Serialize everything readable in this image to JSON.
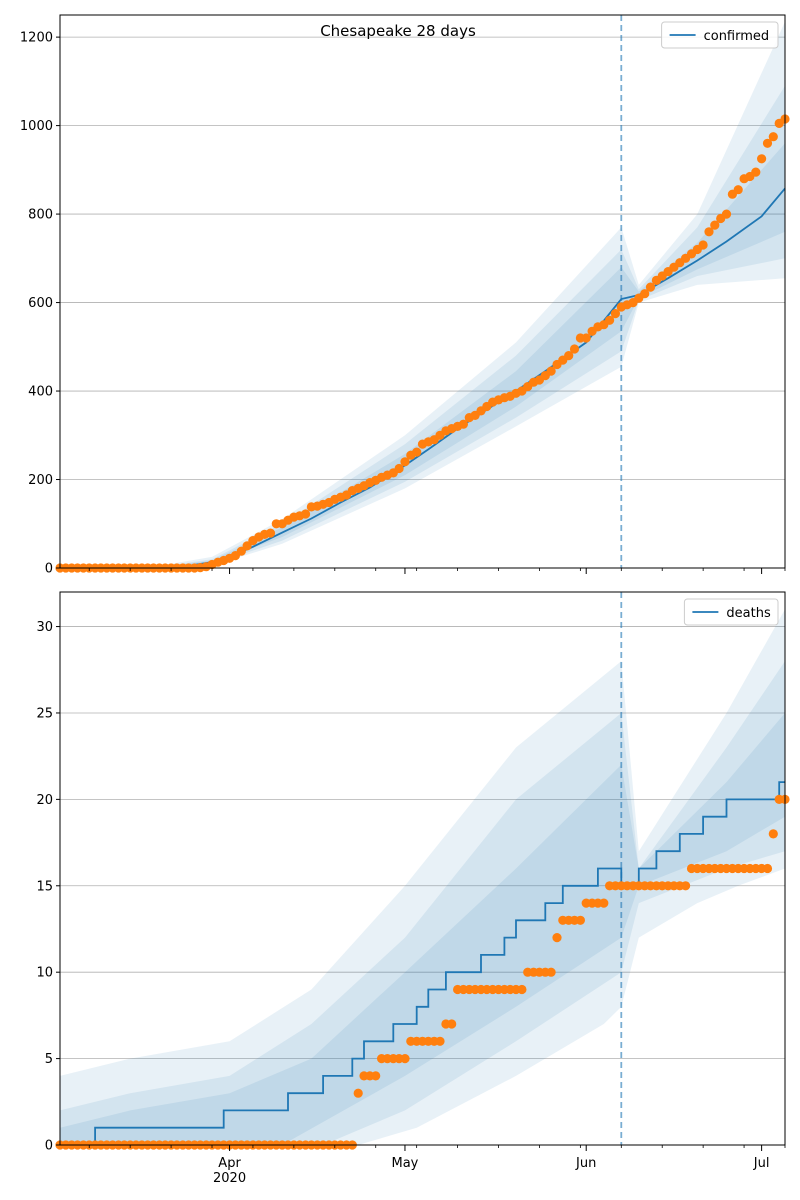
{
  "chart_data": [
    {
      "type": "line",
      "title": "Chesapeake 28 days",
      "legend": {
        "label": "confirmed",
        "placement": "top-right"
      },
      "x_range": [
        "2020-03-03",
        "2020-07-05"
      ],
      "x_ticks": [
        {
          "date": "2020-04-01",
          "label": "Apr",
          "sublabel": "2020"
        },
        {
          "date": "2020-05-01",
          "label": "May",
          "sublabel": ""
        },
        {
          "date": "2020-06-01",
          "label": "Jun",
          "sublabel": ""
        },
        {
          "date": "2020-07-01",
          "label": "Jul",
          "sublabel": ""
        }
      ],
      "show_x_tick_labels": false,
      "ylim": [
        0,
        1250
      ],
      "y_ticks": [
        0,
        200,
        400,
        600,
        800,
        1000,
        1200
      ],
      "grid": "horizontal",
      "forecast_start": "2020-06-07",
      "colors": {
        "model": "#1f77b4",
        "observed": "#ff7f0e"
      },
      "model_line": [
        [
          "2020-03-03",
          0
        ],
        [
          "2020-03-20",
          1
        ],
        [
          "2020-03-25",
          5
        ],
        [
          "2020-03-29",
          13
        ],
        [
          "2020-04-01",
          25
        ],
        [
          "2020-04-05",
          48
        ],
        [
          "2020-04-10",
          80
        ],
        [
          "2020-04-15",
          112
        ],
        [
          "2020-04-20",
          148
        ],
        [
          "2020-04-25",
          182
        ],
        [
          "2020-05-01",
          232
        ],
        [
          "2020-05-05",
          268
        ],
        [
          "2020-05-10",
          315
        ],
        [
          "2020-05-15",
          358
        ],
        [
          "2020-05-20",
          400
        ],
        [
          "2020-05-25",
          445
        ],
        [
          "2020-06-01",
          510
        ],
        [
          "2020-06-07",
          608
        ],
        [
          "2020-06-10",
          617
        ],
        [
          "2020-06-15",
          655
        ],
        [
          "2020-06-20",
          695
        ],
        [
          "2020-06-25",
          738
        ],
        [
          "2020-07-01",
          795
        ],
        [
          "2020-07-05",
          858
        ]
      ],
      "bands": [
        {
          "lower": [
            [
              "2020-03-03",
              0
            ],
            [
              "2020-03-29",
              5
            ],
            [
              "2020-04-10",
              55
            ],
            [
              "2020-05-01",
              180
            ],
            [
              "2020-05-20",
              320
            ],
            [
              "2020-06-07",
              455
            ],
            [
              "2020-06-10",
              600
            ],
            [
              "2020-06-20",
              640
            ],
            [
              "2020-07-05",
              655
            ]
          ],
          "upper": [
            [
              "2020-03-03",
              0
            ],
            [
              "2020-03-20",
              5
            ],
            [
              "2020-03-29",
              25
            ],
            [
              "2020-04-10",
              110
            ],
            [
              "2020-05-01",
              300
            ],
            [
              "2020-05-20",
              510
            ],
            [
              "2020-06-07",
              770
            ],
            [
              "2020-06-10",
              640
            ],
            [
              "2020-06-20",
              800
            ],
            [
              "2020-07-05",
              1235
            ]
          ]
        },
        {
          "lower": [
            [
              "2020-03-03",
              0
            ],
            [
              "2020-03-29",
              8
            ],
            [
              "2020-04-10",
              62
            ],
            [
              "2020-05-01",
              195
            ],
            [
              "2020-05-20",
              340
            ],
            [
              "2020-06-07",
              490
            ],
            [
              "2020-06-10",
              605
            ],
            [
              "2020-06-20",
              660
            ],
            [
              "2020-07-05",
              700
            ]
          ],
          "upper": [
            [
              "2020-03-03",
              0
            ],
            [
              "2020-03-20",
              3
            ],
            [
              "2020-03-29",
              20
            ],
            [
              "2020-04-10",
              100
            ],
            [
              "2020-05-01",
              280
            ],
            [
              "2020-05-20",
              480
            ],
            [
              "2020-06-07",
              720
            ],
            [
              "2020-06-10",
              630
            ],
            [
              "2020-06-20",
              770
            ],
            [
              "2020-07-05",
              1090
            ]
          ]
        },
        {
          "lower": [
            [
              "2020-03-03",
              0
            ],
            [
              "2020-03-29",
              10
            ],
            [
              "2020-04-10",
              70
            ],
            [
              "2020-05-01",
              210
            ],
            [
              "2020-05-20",
              365
            ],
            [
              "2020-06-07",
              535
            ],
            [
              "2020-06-10",
              610
            ],
            [
              "2020-06-20",
              675
            ],
            [
              "2020-07-05",
              760
            ]
          ],
          "upper": [
            [
              "2020-03-03",
              0
            ],
            [
              "2020-03-20",
              2
            ],
            [
              "2020-03-29",
              17
            ],
            [
              "2020-04-10",
              92
            ],
            [
              "2020-05-01",
              258
            ],
            [
              "2020-05-20",
              445
            ],
            [
              "2020-06-07",
              680
            ],
            [
              "2020-06-10",
              625
            ],
            [
              "2020-06-20",
              735
            ],
            [
              "2020-07-05",
              960
            ]
          ]
        }
      ],
      "observed": {
        "start": "2020-03-03",
        "values": [
          0,
          0,
          0,
          0,
          0,
          0,
          0,
          0,
          0,
          0,
          0,
          0,
          0,
          0,
          0,
          0,
          0,
          0,
          0,
          0,
          0,
          0,
          0,
          0,
          1,
          3,
          8,
          13,
          17,
          22,
          28,
          38,
          50,
          62,
          70,
          76,
          79,
          100,
          100,
          108,
          115,
          118,
          122,
          138,
          140,
          144,
          148,
          155,
          160,
          165,
          175,
          180,
          186,
          193,
          198,
          205,
          210,
          215,
          225,
          240,
          255,
          262,
          280,
          285,
          290,
          300,
          310,
          315,
          320,
          325,
          340,
          345,
          355,
          365,
          375,
          380,
          385,
          388,
          395,
          400,
          410,
          420,
          425,
          435,
          445,
          460,
          470,
          480,
          495,
          520,
          520,
          535,
          545,
          550,
          560,
          575,
          590,
          595,
          600,
          610,
          620,
          635,
          650,
          660,
          670,
          680,
          690,
          700,
          710,
          720,
          730,
          760,
          775,
          790,
          800,
          845,
          855,
          880,
          885,
          895,
          925,
          960,
          975,
          1005,
          1015
        ]
      }
    },
    {
      "type": "line",
      "title": "",
      "legend": {
        "label": "deaths",
        "placement": "top-right"
      },
      "x_range": [
        "2020-03-03",
        "2020-07-05"
      ],
      "x_ticks": [
        {
          "date": "2020-04-01",
          "label": "Apr",
          "sublabel": "2020"
        },
        {
          "date": "2020-05-01",
          "label": "May",
          "sublabel": ""
        },
        {
          "date": "2020-06-01",
          "label": "Jun",
          "sublabel": ""
        },
        {
          "date": "2020-07-01",
          "label": "Jul",
          "sublabel": ""
        }
      ],
      "show_x_tick_labels": true,
      "ylim": [
        0,
        32
      ],
      "y_ticks": [
        0,
        5,
        10,
        15,
        20,
        25,
        30
      ],
      "grid": "horizontal",
      "forecast_start": "2020-06-07",
      "colors": {
        "model": "#1f77b4",
        "observed": "#ff7f0e"
      },
      "model_steps": [
        [
          "2020-03-03",
          0
        ],
        [
          "2020-03-09",
          1
        ],
        [
          "2020-03-31",
          2
        ],
        [
          "2020-04-11",
          3
        ],
        [
          "2020-04-17",
          4
        ],
        [
          "2020-04-22",
          5
        ],
        [
          "2020-04-24",
          6
        ],
        [
          "2020-04-29",
          7
        ],
        [
          "2020-05-03",
          8
        ],
        [
          "2020-05-05",
          9
        ],
        [
          "2020-05-08",
          10
        ],
        [
          "2020-05-14",
          11
        ],
        [
          "2020-05-18",
          12
        ],
        [
          "2020-05-20",
          13
        ],
        [
          "2020-05-25",
          14
        ],
        [
          "2020-05-28",
          15
        ],
        [
          "2020-06-03",
          16
        ],
        [
          "2020-06-07",
          15
        ],
        [
          "2020-06-10",
          16
        ],
        [
          "2020-06-13",
          17
        ],
        [
          "2020-06-17",
          18
        ],
        [
          "2020-06-21",
          19
        ],
        [
          "2020-06-25",
          20
        ],
        [
          "2020-07-04",
          21
        ]
      ],
      "bands": [
        {
          "lower": [
            [
              "2020-03-03",
              0
            ],
            [
              "2020-04-23",
              0
            ],
            [
              "2020-05-03",
              1
            ],
            [
              "2020-05-20",
              4
            ],
            [
              "2020-06-04",
              7
            ],
            [
              "2020-06-07",
              8
            ],
            [
              "2020-06-10",
              12
            ],
            [
              "2020-06-20",
              14
            ],
            [
              "2020-06-27",
              15
            ],
            [
              "2020-07-05",
              16
            ]
          ],
          "upper": [
            [
              "2020-03-03",
              4
            ],
            [
              "2020-03-15",
              5
            ],
            [
              "2020-04-01",
              6
            ],
            [
              "2020-04-15",
              9
            ],
            [
              "2020-05-01",
              15
            ],
            [
              "2020-05-20",
              23
            ],
            [
              "2020-06-07",
              28
            ],
            [
              "2020-06-10",
              17
            ],
            [
              "2020-06-25",
              25
            ],
            [
              "2020-07-05",
              31
            ]
          ]
        },
        {
          "lower": [
            [
              "2020-03-03",
              0
            ],
            [
              "2020-04-17",
              0
            ],
            [
              "2020-05-01",
              2
            ],
            [
              "2020-05-20",
              6
            ],
            [
              "2020-06-07",
              10
            ],
            [
              "2020-06-10",
              14
            ],
            [
              "2020-06-25",
              16
            ],
            [
              "2020-07-05",
              17
            ]
          ],
          "upper": [
            [
              "2020-03-03",
              2
            ],
            [
              "2020-03-15",
              3
            ],
            [
              "2020-04-01",
              4
            ],
            [
              "2020-04-15",
              7
            ],
            [
              "2020-05-01",
              12
            ],
            [
              "2020-05-20",
              20
            ],
            [
              "2020-06-07",
              25
            ],
            [
              "2020-06-10",
              16
            ],
            [
              "2020-06-25",
              23
            ],
            [
              "2020-07-05",
              28
            ]
          ]
        },
        {
          "lower": [
            [
              "2020-03-03",
              0
            ],
            [
              "2020-04-10",
              0
            ],
            [
              "2020-05-01",
              4
            ],
            [
              "2020-05-20",
              8
            ],
            [
              "2020-06-07",
              12
            ],
            [
              "2020-06-10",
              15
            ],
            [
              "2020-06-25",
              17
            ],
            [
              "2020-07-05",
              19
            ]
          ],
          "upper": [
            [
              "2020-03-03",
              1
            ],
            [
              "2020-03-15",
              2
            ],
            [
              "2020-04-01",
              3
            ],
            [
              "2020-04-15",
              5
            ],
            [
              "2020-05-01",
              10
            ],
            [
              "2020-05-20",
              16
            ],
            [
              "2020-06-07",
              22
            ],
            [
              "2020-06-10",
              16
            ],
            [
              "2020-06-25",
              21
            ],
            [
              "2020-07-05",
              25
            ]
          ]
        }
      ],
      "observed": {
        "start": "2020-03-03",
        "values": [
          0,
          0,
          0,
          0,
          0,
          0,
          0,
          0,
          0,
          0,
          0,
          0,
          0,
          0,
          0,
          0,
          0,
          0,
          0,
          0,
          0,
          0,
          0,
          0,
          0,
          0,
          0,
          0,
          0,
          0,
          0,
          0,
          0,
          0,
          0,
          0,
          0,
          0,
          0,
          0,
          0,
          0,
          0,
          0,
          0,
          0,
          0,
          0,
          0,
          0,
          0,
          3,
          4,
          4,
          4,
          5,
          5,
          5,
          5,
          5,
          6,
          6,
          6,
          6,
          6,
          6,
          7,
          7,
          9,
          9,
          9,
          9,
          9,
          9,
          9,
          9,
          9,
          9,
          9,
          9,
          10,
          10,
          10,
          10,
          10,
          12,
          13,
          13,
          13,
          13,
          14,
          14,
          14,
          14,
          15,
          15,
          15,
          15,
          15,
          15,
          15,
          15,
          15,
          15,
          15,
          15,
          15,
          15,
          16,
          16,
          16,
          16,
          16,
          16,
          16,
          16,
          16,
          16,
          16,
          16,
          16,
          16,
          18,
          20,
          20,
          20,
          20,
          20,
          21,
          21,
          21,
          21
        ],
        "plotted_until": "2020-07-05"
      }
    }
  ]
}
